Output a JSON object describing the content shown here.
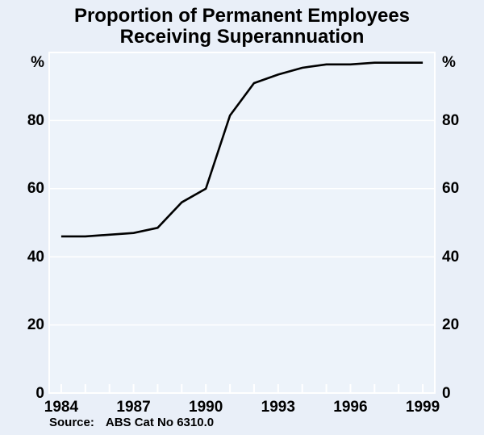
{
  "title": {
    "line1": "Proportion of Permanent Employees",
    "line2": "Receiving Superannuation"
  },
  "axes": {
    "unit_left": "%",
    "unit_right": "%",
    "y_labels": [
      "80",
      "60",
      "40",
      "20",
      "0"
    ],
    "y_label_values": [
      80,
      60,
      40,
      20,
      0
    ],
    "x_labels": [
      "1984",
      "1987",
      "1990",
      "1993",
      "1996",
      "1999"
    ],
    "x_label_values": [
      1984,
      1987,
      1990,
      1993,
      1996,
      1999
    ]
  },
  "source": {
    "label": "Source:",
    "text": "ABS Cat No 6310.0"
  },
  "colors": {
    "background": "#e9eff8",
    "plot_background": "#edf3fa",
    "grid": "#ffffff",
    "frame": "#ffffff",
    "line": "#000000",
    "text": "#000000"
  },
  "chart_data": {
    "type": "line",
    "title": "Proportion of Permanent Employees Receiving Superannuation",
    "ylabel": "%",
    "x": [
      1984,
      1985,
      1986,
      1987,
      1988,
      1989,
      1990,
      1991,
      1992,
      1993,
      1994,
      1995,
      1996,
      1997,
      1998,
      1999
    ],
    "values": [
      46,
      46,
      46.5,
      47,
      48.5,
      56,
      60,
      81.5,
      91,
      93.5,
      95.5,
      96.5,
      96.5,
      97,
      97,
      97
    ],
    "xlim": [
      1983.5,
      1999.5
    ],
    "ylim": [
      0,
      100
    ],
    "ygrid": [
      20,
      40,
      60,
      80
    ],
    "x_tick_years": [
      1984,
      1985,
      1986,
      1987,
      1988,
      1989,
      1990,
      1991,
      1992,
      1993,
      1994,
      1995,
      1996,
      1997,
      1998,
      1999
    ],
    "grid": "on",
    "legend": "none"
  }
}
